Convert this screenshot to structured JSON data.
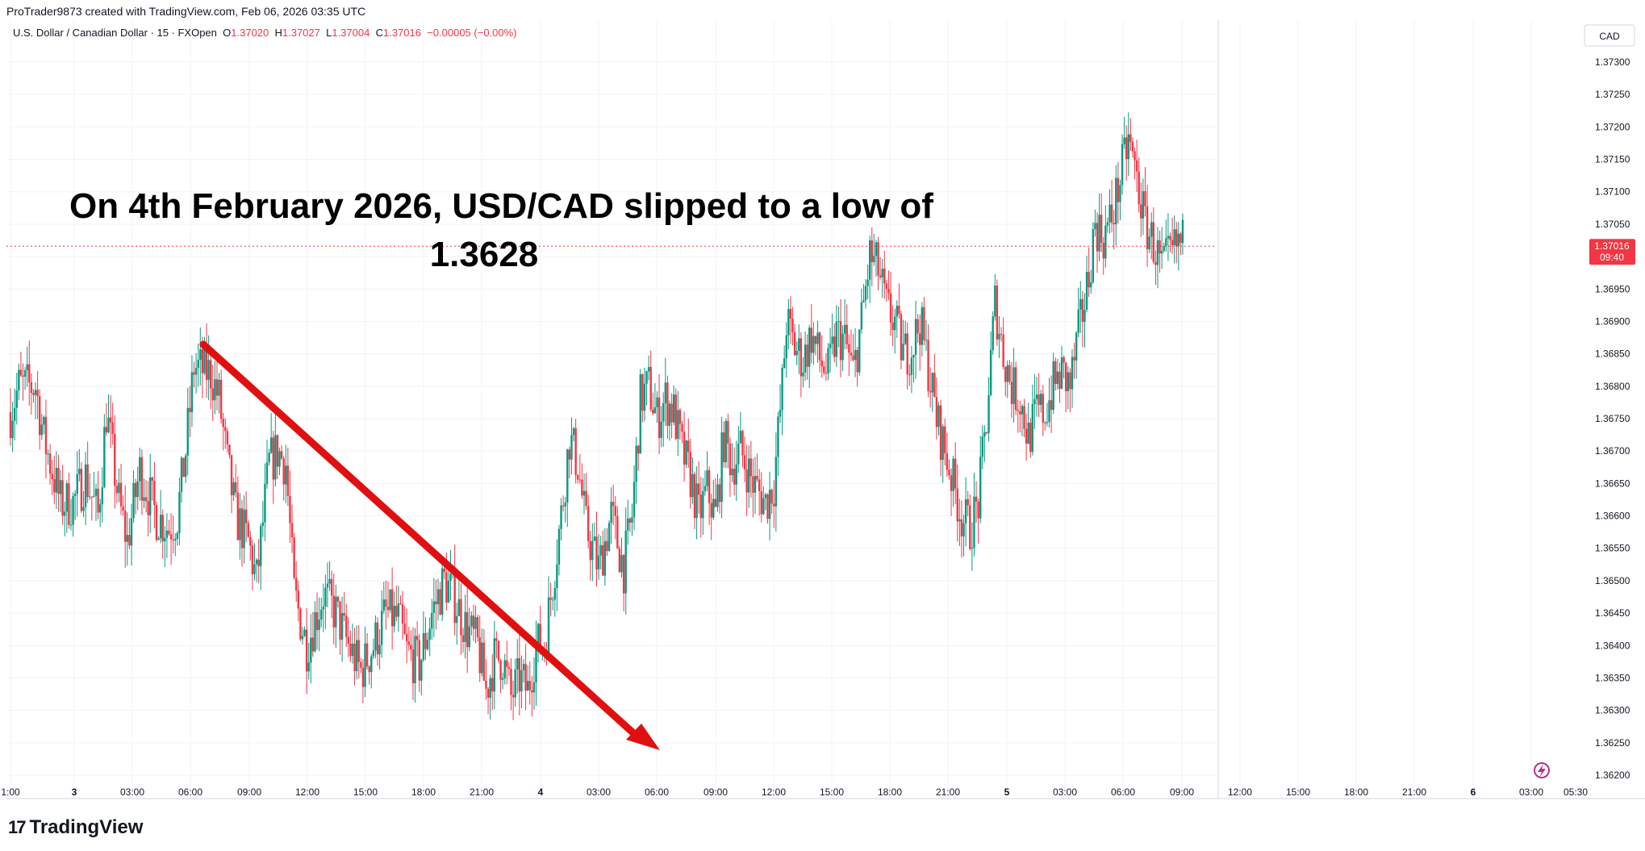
{
  "header": {
    "attribution": "ProTrader9873 created with TradingView.com, Feb 06, 2026 03:35 UTC"
  },
  "legend": {
    "symbol": "U.S. Dollar / Canadian Dollar · 15 · FXOpen",
    "o_label": "O",
    "o_value": "1.37020",
    "h_label": "H",
    "h_value": "1.37027",
    "l_label": "L",
    "l_value": "1.37004",
    "c_label": "C",
    "c_value": "1.37016",
    "change": "−0.00005 (−0.00%)"
  },
  "currency_badge": "CAD",
  "price_label": {
    "price": "1.37016",
    "countdown": "09:40"
  },
  "annotation": {
    "line1": "On 4th February 2026, USD/CAD slipped to a low of",
    "line2": "1.3628"
  },
  "footer": {
    "logo_mark": "17",
    "brand": "TradingView"
  },
  "colors": {
    "up": "#089981",
    "down": "#f23645",
    "arrow": "#e01010",
    "grid": "#f0f3fa",
    "current_price_line": "#f23645"
  },
  "chart_data": {
    "type": "candlestick",
    "symbol": "USDCAD",
    "interval": "15",
    "ylim": [
      1.362,
      1.3733
    ],
    "y_ticks": [
      "1.37300",
      "1.37250",
      "1.37200",
      "1.37150",
      "1.37100",
      "1.37050",
      "1.37000",
      "1.36950",
      "1.36900",
      "1.36850",
      "1.36800",
      "1.36750",
      "1.36700",
      "1.36650",
      "1.36600",
      "1.36550",
      "1.36500",
      "1.36450",
      "1.36400",
      "1.36350",
      "1.36300",
      "1.36250",
      "1.36200"
    ],
    "x_ticks": [
      "1:00",
      "3",
      "03:00",
      "06:00",
      "09:00",
      "12:00",
      "15:00",
      "18:00",
      "21:00",
      "4",
      "03:00",
      "06:00",
      "09:00",
      "12:00",
      "15:00",
      "18:00",
      "21:00",
      "5",
      "03:00",
      "06:00",
      "09:00",
      "12:00",
      "15:00",
      "18:00",
      "21:00",
      "6",
      "03:00",
      "05:30"
    ],
    "current_price": 1.37016,
    "key_low": 1.3628,
    "grid": true
  }
}
